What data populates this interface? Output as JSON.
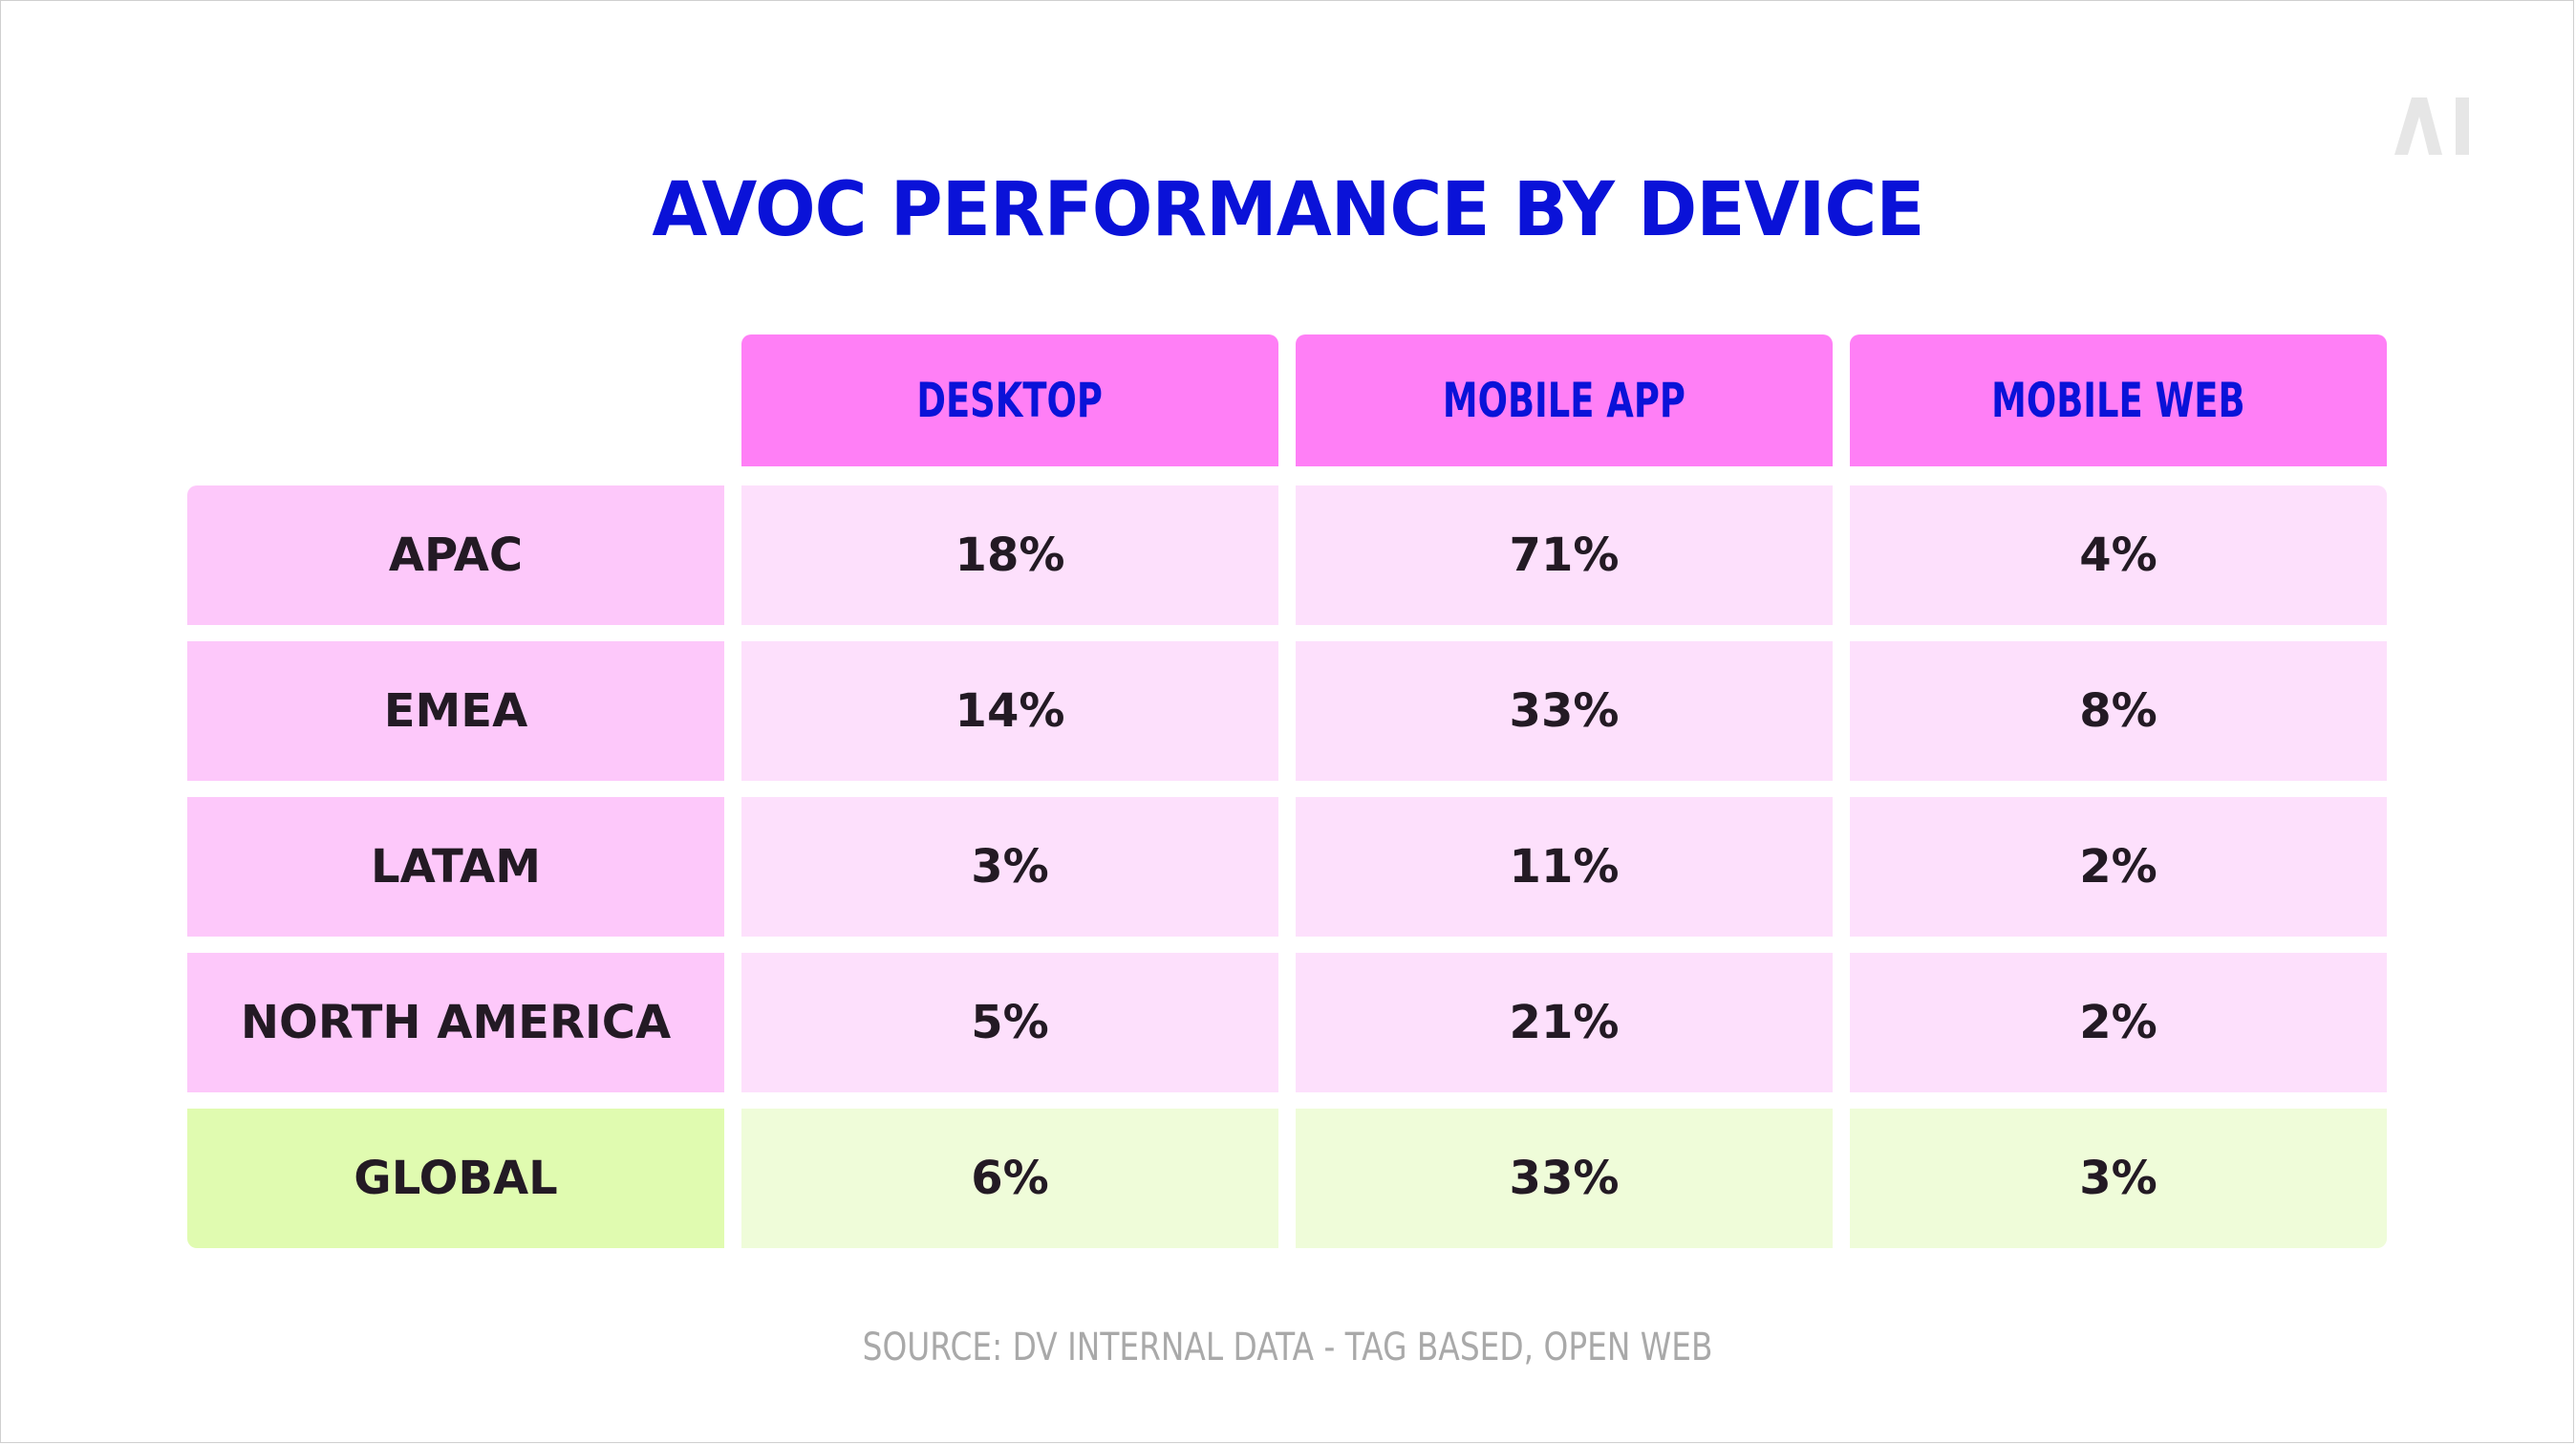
{
  "title": "AVOC PERFORMANCE BY DEVICE",
  "logo_text": "AI",
  "source": "SOURCE: DV INTERNAL DATA - TAG BASED, OPEN WEB",
  "colors": {
    "title": "#0a12d8",
    "header_bg": "#ff7ff6",
    "row_label_bg": "#fdc8fa",
    "cell_bg": "#fde0fc",
    "global_label_bg": "#e0fbb0",
    "global_cell_bg": "#effcd9",
    "source_text": "#a9a9a9"
  },
  "chart_data": {
    "type": "table",
    "title": "AVOC PERFORMANCE BY DEVICE",
    "columns": [
      "DESKTOP",
      "MOBILE APP",
      "MOBILE WEB"
    ],
    "rows": [
      {
        "label": "APAC",
        "values": [
          "18%",
          "71%",
          "4%"
        ]
      },
      {
        "label": "EMEA",
        "values": [
          "14%",
          "33%",
          "8%"
        ]
      },
      {
        "label": "LATAM",
        "values": [
          "3%",
          "11%",
          "2%"
        ]
      },
      {
        "label": "NORTH AMERICA",
        "values": [
          "5%",
          "21%",
          "2%"
        ]
      },
      {
        "label": "GLOBAL",
        "values": [
          "6%",
          "33%",
          "3%"
        ]
      }
    ]
  }
}
